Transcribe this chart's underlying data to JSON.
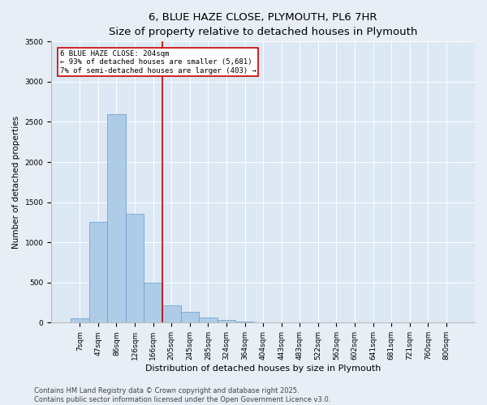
{
  "title_line1": "6, BLUE HAZE CLOSE, PLYMOUTH, PL6 7HR",
  "title_line2": "Size of property relative to detached houses in Plymouth",
  "xlabel": "Distribution of detached houses by size in Plymouth",
  "ylabel": "Number of detached properties",
  "categories": [
    "7sqm",
    "47sqm",
    "86sqm",
    "126sqm",
    "166sqm",
    "205sqm",
    "245sqm",
    "285sqm",
    "324sqm",
    "364sqm",
    "404sqm",
    "443sqm",
    "483sqm",
    "522sqm",
    "562sqm",
    "602sqm",
    "641sqm",
    "681sqm",
    "721sqm",
    "760sqm",
    "800sqm"
  ],
  "values": [
    50,
    1250,
    2600,
    1350,
    500,
    220,
    130,
    60,
    30,
    10,
    5,
    2,
    1,
    0,
    0,
    0,
    0,
    0,
    0,
    0,
    0
  ],
  "bar_color": "#aecce8",
  "bar_edge_color": "#6699cc",
  "bar_linewidth": 0.5,
  "vline_color": "#cc0000",
  "vline_linewidth": 1.2,
  "vline_pos": 4.5,
  "box_text_line1": "6 BLUE HAZE CLOSE: 204sqm",
  "box_text_line2": "← 93% of detached houses are smaller (5,681)",
  "box_text_line3": "7% of semi-detached houses are larger (403) →",
  "box_color": "#cc0000",
  "box_bg": "#ffffff",
  "ylim": [
    0,
    3500
  ],
  "yticks": [
    0,
    500,
    1000,
    1500,
    2000,
    2500,
    3000,
    3500
  ],
  "footer_line1": "Contains HM Land Registry data © Crown copyright and database right 2025.",
  "footer_line2": "Contains public sector information licensed under the Open Government Licence v3.0.",
  "bg_color": "#e8eef5",
  "plot_bg_color": "#dce8f4",
  "grid_color": "#ffffff",
  "title_fontsize": 9.5,
  "axis_label_fontsize": 8,
  "tick_fontsize": 6.5,
  "annotation_fontsize": 6.5,
  "footer_fontsize": 6.0,
  "ylabel_fontsize": 7.5
}
